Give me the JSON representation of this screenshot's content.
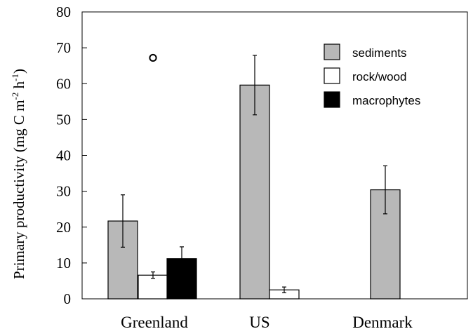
{
  "chart_data": {
    "type": "bar",
    "title": "",
    "xlabel": "",
    "ylabel": {
      "main": "Primary productivity (mg C m",
      "sup1": "-2",
      "mid": " h",
      "sup2": "-1",
      "end": ")"
    },
    "categories": [
      "Greenland",
      "US",
      "Denmark"
    ],
    "ylim": [
      0,
      80
    ],
    "yticks": [
      0,
      10,
      20,
      30,
      40,
      50,
      60,
      70,
      80
    ],
    "legend_position": "top-right",
    "series": [
      {
        "name": "sediments",
        "color": "#b8b8b8",
        "values": [
          21.7,
          59.6,
          30.4
        ],
        "errors": [
          7.3,
          8.3,
          6.7
        ]
      },
      {
        "name": "rock/wood",
        "color": "#ffffff",
        "values": [
          6.6,
          2.5,
          null
        ],
        "errors": [
          0.9,
          0.8,
          null
        ]
      },
      {
        "name": "macrophytes",
        "color": "#000000",
        "values": [
          11.2,
          null,
          null
        ],
        "errors": [
          3.3,
          null,
          null
        ]
      }
    ],
    "outliers": [
      {
        "category": "Greenland",
        "series": "rock/wood",
        "value": 67.2
      }
    ]
  }
}
